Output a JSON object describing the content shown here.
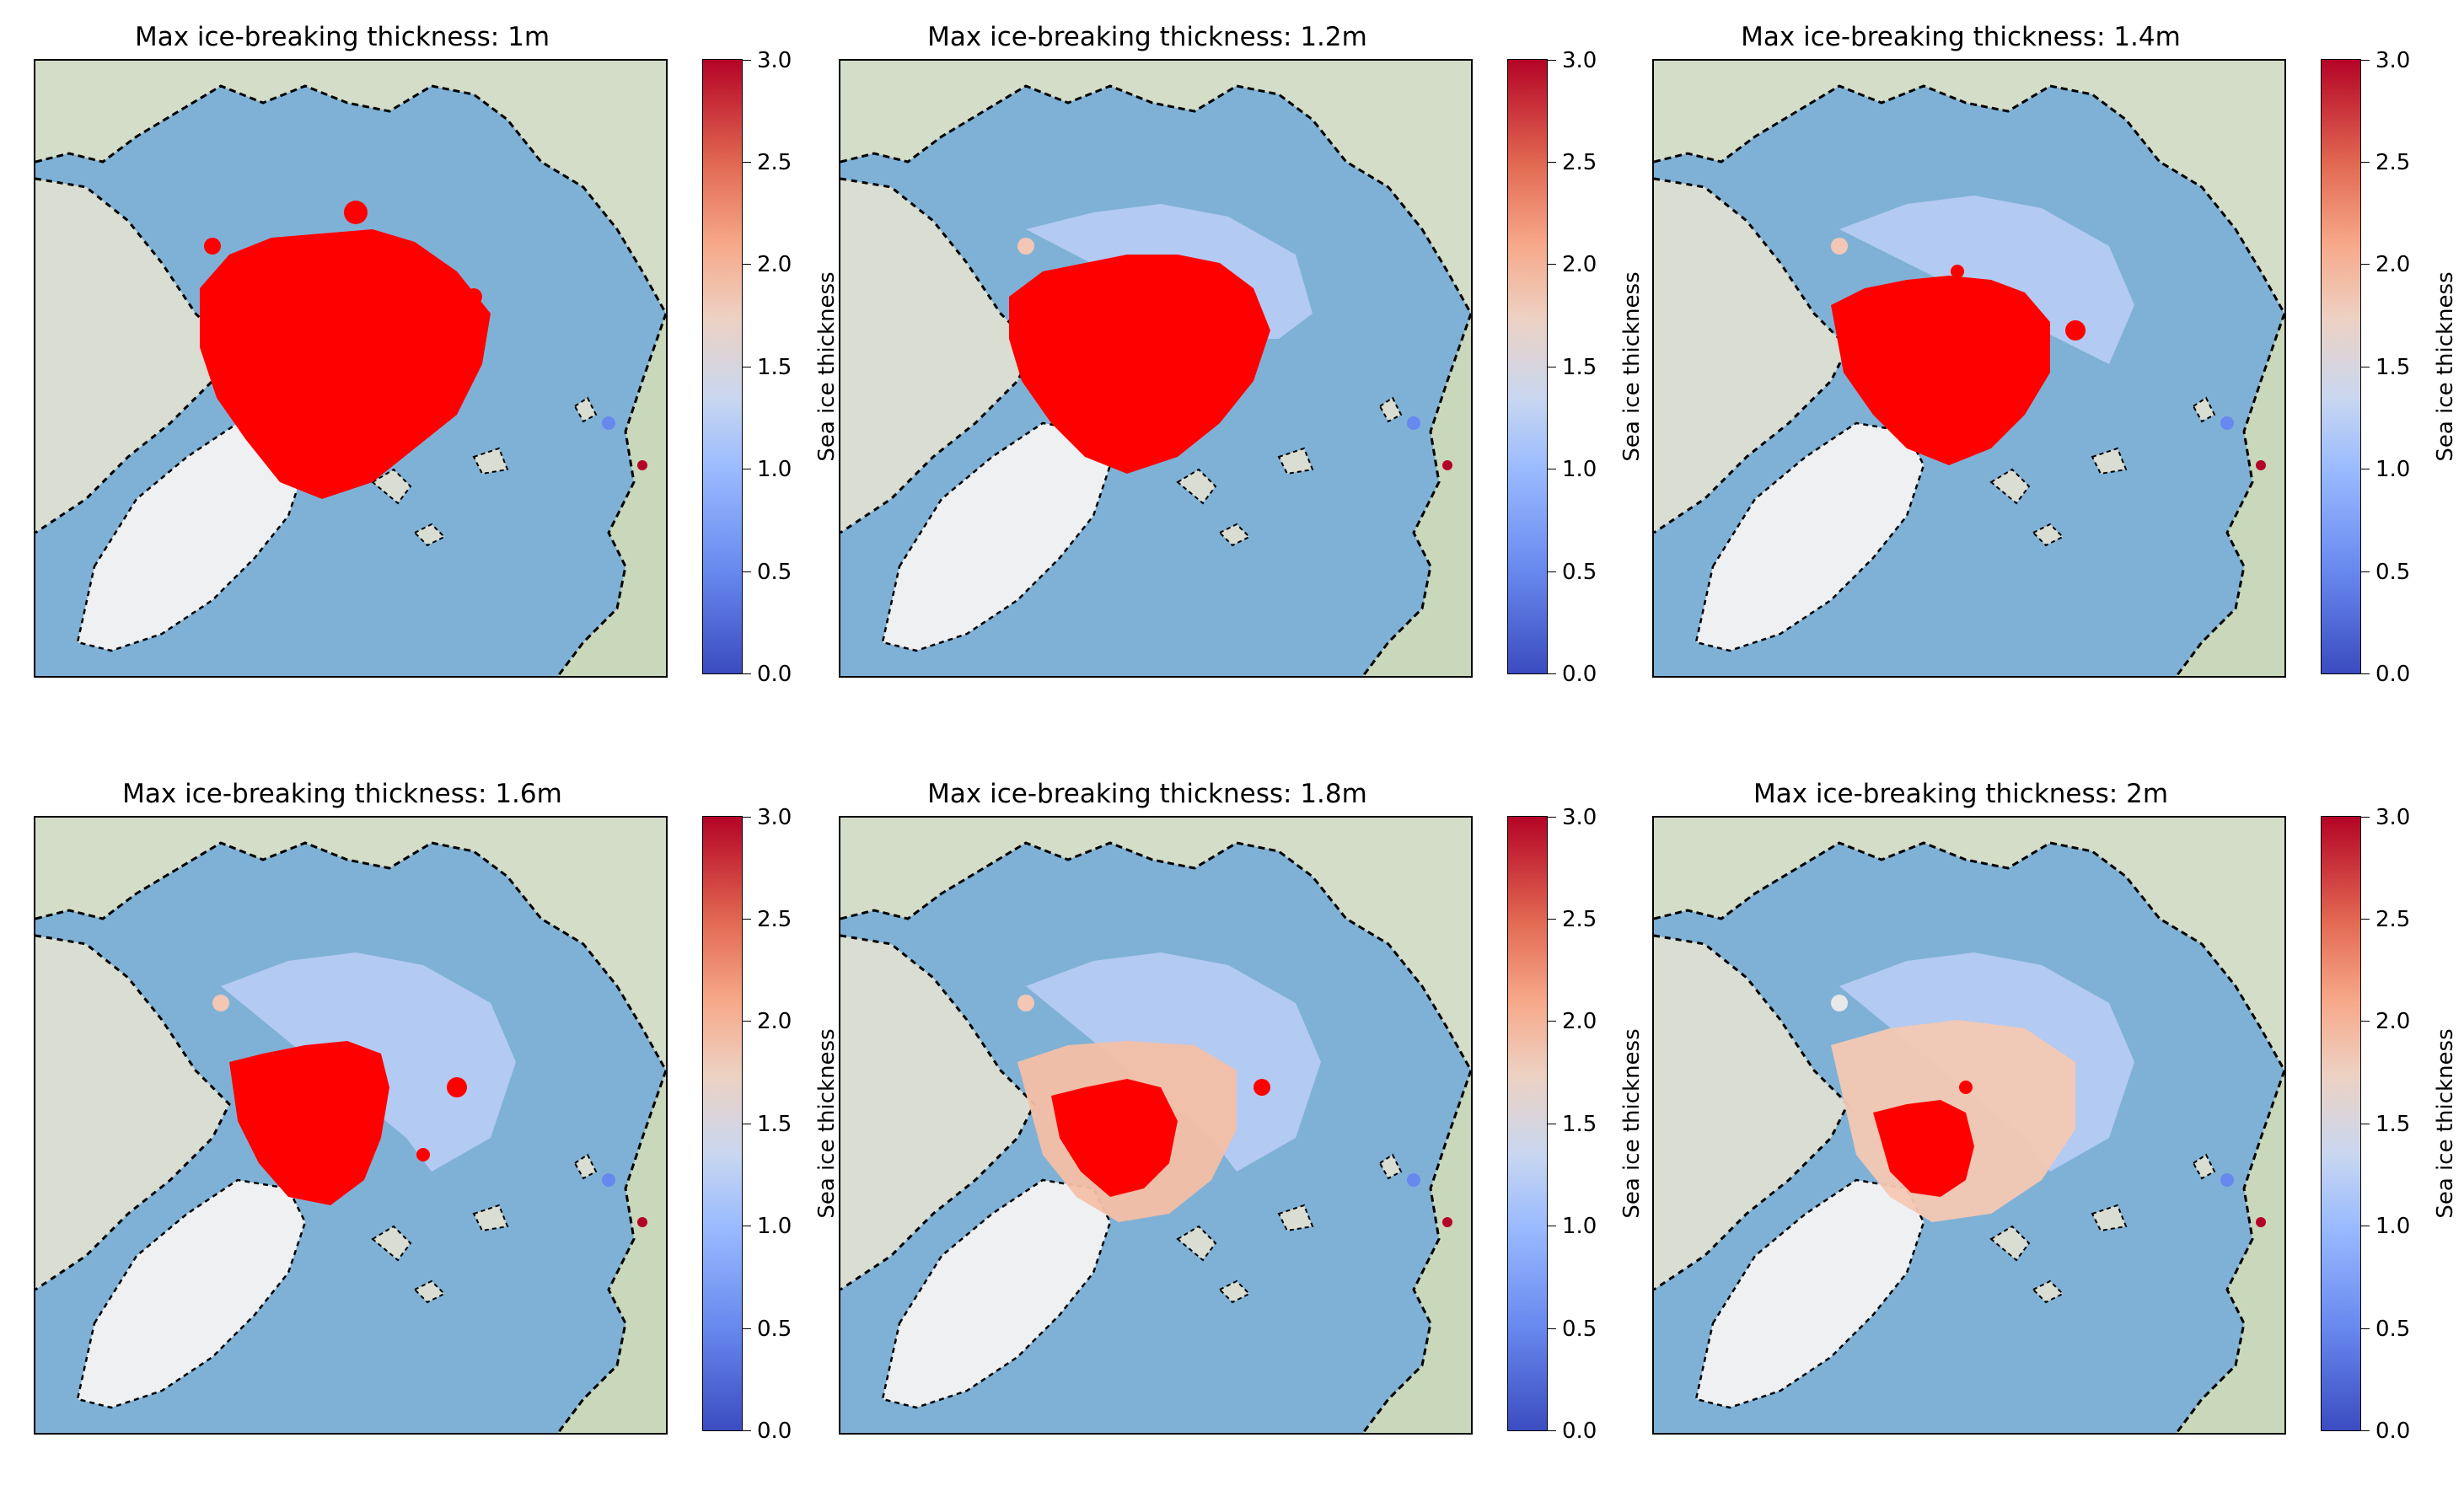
{
  "panels": [
    {
      "title": "Max ice-breaking thickness: 1m",
      "threshold_m": 1.0
    },
    {
      "title": "Max ice-breaking thickness: 1.2m",
      "threshold_m": 1.2
    },
    {
      "title": "Max ice-breaking thickness: 1.4m",
      "threshold_m": 1.4
    },
    {
      "title": "Max ice-breaking thickness: 1.6m",
      "threshold_m": 1.6
    },
    {
      "title": "Max ice-breaking thickness: 1.8m",
      "threshold_m": 1.8
    },
    {
      "title": "Max ice-breaking thickness: 2m",
      "threshold_m": 2.0
    }
  ],
  "colorbar": {
    "label": "Sea ice thickness",
    "ticks": [
      "0.0",
      "0.5",
      "1.0",
      "1.5",
      "2.0",
      "2.5",
      "3.0"
    ],
    "range": [
      0,
      3
    ],
    "colormap": "coolwarm",
    "low_color": "#3b4cc0",
    "mid_color": "#dddddd",
    "high_color": "#b40426"
  },
  "colors": {
    "ocean": "#7fb1d6",
    "land": "#d4ddc8",
    "greenland": "#eef0f2",
    "blocked_ice": "#ff0000"
  }
}
